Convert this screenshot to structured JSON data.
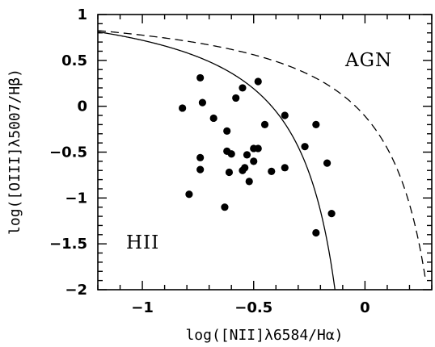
{
  "chart_data": {
    "type": "scatter",
    "xlabel": "log([NII]λ6584/Hα)",
    "ylabel": "log([OIII]λ5007/Hβ)",
    "xlim": [
      -1.2,
      0.3
    ],
    "ylim": [
      -2,
      1
    ],
    "xticks": [
      -1,
      -0.5,
      0
    ],
    "xtick_labels": [
      "−1",
      "−0.5",
      "0"
    ],
    "yticks": [
      1,
      0.5,
      0,
      -0.5,
      -1,
      -1.5,
      -2
    ],
    "ytick_labels": [
      "1",
      "0.5",
      "0",
      "−0.5",
      "−1",
      "−1.5",
      "−2"
    ],
    "grid": false,
    "annotations": [
      "AGN",
      "HII"
    ],
    "curves": [
      {
        "style": "solid",
        "formula": "y = 0.61/(x - 0.05) + 1.3"
      },
      {
        "style": "dashed",
        "formula": "y = 0.61/(x - 0.47) + 1.19"
      }
    ],
    "points": [
      {
        "x": -0.82,
        "y": -0.02
      },
      {
        "x": -0.74,
        "y": 0.31
      },
      {
        "x": -0.73,
        "y": 0.04
      },
      {
        "x": -0.74,
        "y": -0.56
      },
      {
        "x": -0.74,
        "y": -0.69
      },
      {
        "x": -0.79,
        "y": -0.96
      },
      {
        "x": -0.68,
        "y": -0.13
      },
      {
        "x": -0.62,
        "y": -0.27
      },
      {
        "x": -0.62,
        "y": -0.49
      },
      {
        "x": -0.6,
        "y": -0.52
      },
      {
        "x": -0.61,
        "y": -0.72
      },
      {
        "x": -0.63,
        "y": -1.1
      },
      {
        "x": -0.58,
        "y": 0.09
      },
      {
        "x": -0.55,
        "y": 0.2
      },
      {
        "x": -0.55,
        "y": -0.7
      },
      {
        "x": -0.54,
        "y": -0.67
      },
      {
        "x": -0.53,
        "y": -0.53
      },
      {
        "x": -0.52,
        "y": -0.82
      },
      {
        "x": -0.5,
        "y": -0.46
      },
      {
        "x": -0.5,
        "y": -0.6
      },
      {
        "x": -0.48,
        "y": 0.27
      },
      {
        "x": -0.48,
        "y": -0.46
      },
      {
        "x": -0.45,
        "y": -0.2
      },
      {
        "x": -0.42,
        "y": -0.71
      },
      {
        "x": -0.36,
        "y": -0.1
      },
      {
        "x": -0.36,
        "y": -0.67
      },
      {
        "x": -0.27,
        "y": -0.44
      },
      {
        "x": -0.22,
        "y": -0.2
      },
      {
        "x": -0.22,
        "y": -1.38
      },
      {
        "x": -0.17,
        "y": -0.62
      },
      {
        "x": -0.15,
        "y": -1.17
      }
    ]
  }
}
